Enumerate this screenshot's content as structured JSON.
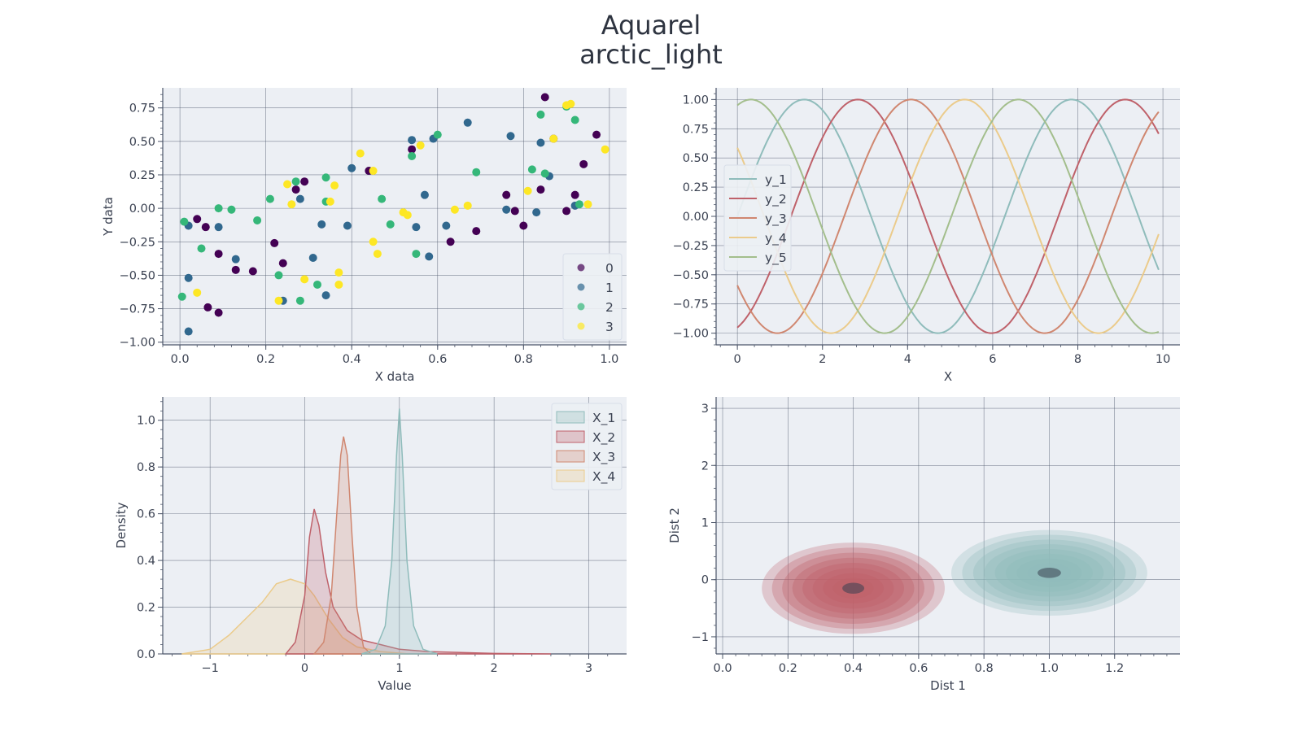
{
  "figure": {
    "title_line1": "Aquarel",
    "title_line2": "arctic_light"
  },
  "colors": {
    "panel_bg": "#eceff4",
    "grid": "#4c566a",
    "text": "#3b4252",
    "teal": "#88c0d0",
    "seq": [
      "#8fbcbb",
      "#bf616a",
      "#d08770",
      "#ebcb8b",
      "#a3be8c"
    ],
    "viridis": [
      "#440154",
      "#31688e",
      "#35b779",
      "#fde725"
    ]
  },
  "chart_data": [
    {
      "type": "scatter",
      "xlabel": "X data",
      "ylabel": "Y data",
      "xlim": [
        -0.04,
        1.04
      ],
      "ylim": [
        -1.02,
        0.9
      ],
      "xticks": [
        "0.0",
        "0.2",
        "0.4",
        "0.6",
        "0.8",
        "1.0"
      ],
      "xtick_values": [
        0,
        0.2,
        0.4,
        0.6,
        0.8,
        1.0
      ],
      "yticks": [
        "−1.00",
        "−0.75",
        "−0.50",
        "−0.25",
        "0.00",
        "0.25",
        "0.50",
        "0.75"
      ],
      "ytick_values": [
        -1,
        -0.75,
        -0.5,
        -0.25,
        0,
        0.25,
        0.5,
        0.75
      ],
      "legend": [
        "0",
        "1",
        "2",
        "3"
      ],
      "legend_position": "lower right",
      "series": [
        {
          "name": "0",
          "points": [
            [
              0.04,
              -0.08
            ],
            [
              0.06,
              -0.14
            ],
            [
              0.065,
              -0.74
            ],
            [
              0.09,
              -0.34
            ],
            [
              0.09,
              -0.78
            ],
            [
              0.13,
              -0.46
            ],
            [
              0.17,
              -0.47
            ],
            [
              0.22,
              -0.26
            ],
            [
              0.24,
              -0.41
            ],
            [
              0.27,
              0.14
            ],
            [
              0.29,
              0.2
            ],
            [
              0.44,
              0.28
            ],
            [
              0.54,
              0.44
            ],
            [
              0.63,
              -0.25
            ],
            [
              0.69,
              -0.17
            ],
            [
              0.76,
              0.1
            ],
            [
              0.78,
              -0.02
            ],
            [
              0.8,
              -0.13
            ],
            [
              0.84,
              0.14
            ],
            [
              0.85,
              0.83
            ],
            [
              0.87,
              0.52
            ],
            [
              0.9,
              -0.02
            ],
            [
              0.92,
              0.1
            ],
            [
              0.94,
              0.33
            ],
            [
              0.97,
              0.55
            ]
          ]
        },
        {
          "name": "1",
          "points": [
            [
              0.02,
              -0.52
            ],
            [
              0.02,
              -0.92
            ],
            [
              0.02,
              -0.13
            ],
            [
              0.09,
              -0.14
            ],
            [
              0.13,
              -0.38
            ],
            [
              0.24,
              -0.69
            ],
            [
              0.28,
              0.07
            ],
            [
              0.31,
              -0.37
            ],
            [
              0.33,
              -0.12
            ],
            [
              0.34,
              -0.65
            ],
            [
              0.39,
              -0.13
            ],
            [
              0.4,
              0.3
            ],
            [
              0.54,
              0.51
            ],
            [
              0.55,
              -0.14
            ],
            [
              0.57,
              0.1
            ],
            [
              0.58,
              -0.36
            ],
            [
              0.59,
              0.52
            ],
            [
              0.62,
              -0.13
            ],
            [
              0.67,
              0.64
            ],
            [
              0.76,
              -0.01
            ],
            [
              0.77,
              0.54
            ],
            [
              0.83,
              -0.03
            ],
            [
              0.84,
              0.49
            ],
            [
              0.86,
              0.24
            ],
            [
              0.92,
              0.02
            ]
          ]
        },
        {
          "name": "2",
          "points": [
            [
              0.005,
              -0.66
            ],
            [
              0.01,
              -0.1
            ],
            [
              0.05,
              -0.3
            ],
            [
              0.09,
              0
            ],
            [
              0.12,
              -0.01
            ],
            [
              0.18,
              -0.09
            ],
            [
              0.21,
              0.07
            ],
            [
              0.23,
              -0.5
            ],
            [
              0.27,
              0.2
            ],
            [
              0.28,
              -0.69
            ],
            [
              0.32,
              -0.57
            ],
            [
              0.34,
              0.23
            ],
            [
              0.34,
              0.05
            ],
            [
              0.47,
              0.07
            ],
            [
              0.49,
              -0.12
            ],
            [
              0.54,
              0.39
            ],
            [
              0.55,
              -0.34
            ],
            [
              0.6,
              0.55
            ],
            [
              0.69,
              0.27
            ],
            [
              0.82,
              0.29
            ],
            [
              0.84,
              0.7
            ],
            [
              0.85,
              0.26
            ],
            [
              0.9,
              0.76
            ],
            [
              0.92,
              0.66
            ],
            [
              0.93,
              0.03
            ]
          ]
        },
        {
          "name": "3",
          "points": [
            [
              0.04,
              -0.63
            ],
            [
              0.23,
              -0.69
            ],
            [
              0.25,
              0.18
            ],
            [
              0.26,
              0.03
            ],
            [
              0.29,
              -0.53
            ],
            [
              0.35,
              0.05
            ],
            [
              0.36,
              0.17
            ],
            [
              0.37,
              -0.48
            ],
            [
              0.37,
              -0.57
            ],
            [
              0.42,
              0.41
            ],
            [
              0.45,
              0.28
            ],
            [
              0.45,
              -0.25
            ],
            [
              0.46,
              -0.34
            ],
            [
              0.52,
              -0.03
            ],
            [
              0.53,
              -0.05
            ],
            [
              0.56,
              0.47
            ],
            [
              0.64,
              -0.01
            ],
            [
              0.67,
              0.02
            ],
            [
              0.81,
              0.13
            ],
            [
              0.87,
              0.52
            ],
            [
              0.9,
              0.77
            ],
            [
              0.91,
              0.78
            ],
            [
              0.95,
              0.03
            ],
            [
              0.99,
              0.44
            ]
          ]
        }
      ]
    },
    {
      "type": "line",
      "xlabel": "X",
      "ylabel": "",
      "xlim": [
        -0.5,
        10.4
      ],
      "ylim": [
        -1.1,
        1.1
      ],
      "xticks": [
        "0",
        "2",
        "4",
        "6",
        "8",
        "10"
      ],
      "xtick_values": [
        0,
        2,
        4,
        6,
        8,
        10
      ],
      "yticks": [
        "−1.00",
        "−0.75",
        "−0.50",
        "−0.25",
        "0.00",
        "0.25",
        "0.50",
        "0.75",
        "1.00"
      ],
      "ytick_values": [
        -1,
        -0.75,
        -0.5,
        -0.25,
        0,
        0.25,
        0.5,
        0.75,
        1
      ],
      "x_range": [
        0,
        9.9
      ],
      "legend_position": "center left",
      "series": [
        {
          "name": "y_1",
          "function": "sin(x)"
        },
        {
          "name": "y_2",
          "function": "sin(x-1.26)"
        },
        {
          "name": "y_3",
          "function": "sin(x-2.51)"
        },
        {
          "name": "y_4",
          "function": "sin(x-3.77)"
        },
        {
          "name": "y_5",
          "function": "sin(x-5.03)"
        }
      ]
    },
    {
      "type": "area",
      "xlabel": "Value",
      "ylabel": "Density",
      "xlim": [
        -1.5,
        3.4
      ],
      "ylim": [
        0,
        1.1
      ],
      "xticks": [
        "−1",
        "0",
        "1",
        "2",
        "3"
      ],
      "xtick_values": [
        -1,
        0,
        1,
        2,
        3
      ],
      "yticks": [
        "0.0",
        "0.2",
        "0.4",
        "0.6",
        "0.8",
        "1.0"
      ],
      "ytick_values": [
        0,
        0.2,
        0.4,
        0.6,
        0.8,
        1.0
      ],
      "legend_position": "upper right",
      "series": [
        {
          "name": "X_1",
          "points": [
            [
              0.6,
              0
            ],
            [
              0.75,
              0.02
            ],
            [
              0.85,
              0.12
            ],
            [
              0.92,
              0.4
            ],
            [
              0.97,
              0.85
            ],
            [
              1.0,
              1.05
            ],
            [
              1.03,
              0.85
            ],
            [
              1.08,
              0.4
            ],
            [
              1.15,
              0.12
            ],
            [
              1.25,
              0.02
            ],
            [
              1.4,
              0
            ]
          ]
        },
        {
          "name": "X_2",
          "points": [
            [
              -0.2,
              0
            ],
            [
              -0.1,
              0.05
            ],
            [
              0,
              0.25
            ],
            [
              0.05,
              0.5
            ],
            [
              0.1,
              0.62
            ],
            [
              0.15,
              0.55
            ],
            [
              0.22,
              0.35
            ],
            [
              0.3,
              0.2
            ],
            [
              0.45,
              0.1
            ],
            [
              0.6,
              0.06
            ],
            [
              0.8,
              0.04
            ],
            [
              1.0,
              0.02
            ],
            [
              1.3,
              0.01
            ],
            [
              2,
              0.002
            ],
            [
              2.6,
              0
            ]
          ]
        },
        {
          "name": "X_3",
          "points": [
            [
              0.1,
              0
            ],
            [
              0.2,
              0.05
            ],
            [
              0.28,
              0.25
            ],
            [
              0.33,
              0.55
            ],
            [
              0.38,
              0.85
            ],
            [
              0.41,
              0.93
            ],
            [
              0.45,
              0.85
            ],
            [
              0.5,
              0.5
            ],
            [
              0.55,
              0.2
            ],
            [
              0.62,
              0.03
            ],
            [
              0.7,
              0
            ]
          ]
        },
        {
          "name": "X_4",
          "points": [
            [
              -1.3,
              0
            ],
            [
              -1.0,
              0.02
            ],
            [
              -0.8,
              0.08
            ],
            [
              -0.6,
              0.16
            ],
            [
              -0.45,
              0.22
            ],
            [
              -0.3,
              0.3
            ],
            [
              -0.15,
              0.32
            ],
            [
              0,
              0.3
            ],
            [
              0.1,
              0.25
            ],
            [
              0.25,
              0.15
            ],
            [
              0.4,
              0.07
            ],
            [
              0.55,
              0.03
            ],
            [
              0.8,
              0.01
            ],
            [
              1.1,
              0
            ]
          ]
        }
      ]
    },
    {
      "type": "heatmap",
      "xlabel": "Dist 1",
      "ylabel": "Dist 2",
      "xlim": [
        -0.02,
        1.4
      ],
      "ylim": [
        -1.3,
        3.2
      ],
      "xticks": [
        "0.0",
        "0.2",
        "0.4",
        "0.6",
        "0.8",
        "1.0",
        "1.2"
      ],
      "xtick_values": [
        0,
        0.2,
        0.4,
        0.6,
        0.8,
        1.0,
        1.2
      ],
      "yticks": [
        "−1",
        "0",
        "1",
        "2",
        "3"
      ],
      "ytick_values": [
        -1,
        0,
        1,
        2,
        3
      ],
      "kde": [
        {
          "center": [
            0.4,
            -0.15
          ],
          "spread": [
            0.28,
            0.8
          ],
          "color": "#bf616a",
          "levels": 9
        },
        {
          "center": [
            1.0,
            0.12
          ],
          "spread": [
            0.3,
            0.75
          ],
          "color": "#8fbcbb",
          "levels": 9
        }
      ]
    }
  ]
}
